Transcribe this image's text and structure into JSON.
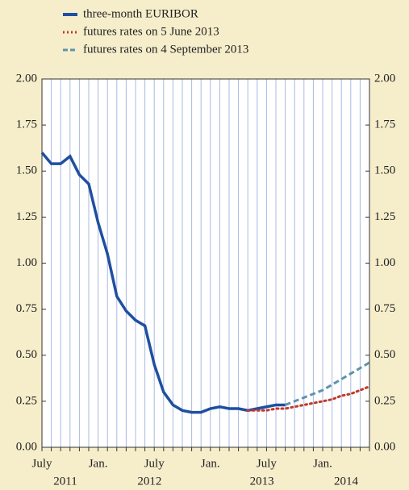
{
  "chart_data": {
    "type": "line",
    "xlim": [
      "2011-07",
      "2014-06"
    ],
    "xticks": [
      "2011-07",
      "2011-08",
      "2011-09",
      "2011-10",
      "2011-11",
      "2011-12",
      "2012-01",
      "2012-02",
      "2012-03",
      "2012-04",
      "2012-05",
      "2012-06",
      "2012-07",
      "2012-08",
      "2012-09",
      "2012-10",
      "2012-11",
      "2012-12",
      "2013-01",
      "2013-02",
      "2013-03",
      "2013-04",
      "2013-05",
      "2013-06",
      "2013-07",
      "2013-08",
      "2013-09",
      "2013-10",
      "2013-11",
      "2013-12",
      "2014-01",
      "2014-02",
      "2014-03",
      "2014-04",
      "2014-05",
      "2014-06"
    ],
    "xtick_labels": [
      {
        "value": "2011-07",
        "label": "July"
      },
      {
        "value": "2012-01",
        "label": "Jan."
      },
      {
        "value": "2012-07",
        "label": "July"
      },
      {
        "value": "2013-01",
        "label": "Jan."
      },
      {
        "value": "2013-07",
        "label": "July"
      },
      {
        "value": "2014-01",
        "label": "Jan."
      }
    ],
    "years": [
      "2011",
      "2012",
      "2013",
      "2014"
    ],
    "ylim": [
      0,
      2
    ],
    "yticks": [
      {
        "value": 0,
        "label": "0.00"
      },
      {
        "value": 0.25,
        "label": "0.25"
      },
      {
        "value": 0.5,
        "label": "0.50"
      },
      {
        "value": 0.75,
        "label": "0.75"
      },
      {
        "value": 1,
        "label": "1.00"
      },
      {
        "value": 1.25,
        "label": "1.25"
      },
      {
        "value": 1.5,
        "label": "1.50"
      },
      {
        "value": 1.75,
        "label": "1.75"
      },
      {
        "value": 2,
        "label": "2.00"
      }
    ],
    "grid": true,
    "series": [
      {
        "name": "three-month EURIBOR",
        "color": "#1f4fa0",
        "style": "solid",
        "x": [
          "2011-07",
          "2011-08",
          "2011-09",
          "2011-10",
          "2011-11",
          "2011-12",
          "2012-01",
          "2012-02",
          "2012-03",
          "2012-04",
          "2012-05",
          "2012-06",
          "2012-07",
          "2012-08",
          "2012-09",
          "2012-10",
          "2012-11",
          "2012-12",
          "2013-01",
          "2013-02",
          "2013-03",
          "2013-04",
          "2013-05",
          "2013-06",
          "2013-07",
          "2013-08",
          "2013-09"
        ],
        "values": [
          1.6,
          1.54,
          1.54,
          1.58,
          1.48,
          1.43,
          1.22,
          1.05,
          0.82,
          0.74,
          0.69,
          0.66,
          0.45,
          0.3,
          0.23,
          0.2,
          0.19,
          0.19,
          0.21,
          0.22,
          0.21,
          0.21,
          0.2,
          0.21,
          0.22,
          0.23,
          0.23
        ]
      },
      {
        "name": "futures rates on 5 June 2013",
        "color": "#c0392b",
        "style": "dotted",
        "x": [
          "2013-05",
          "2013-06",
          "2013-07",
          "2013-08",
          "2013-09",
          "2013-10",
          "2013-11",
          "2013-12",
          "2014-01",
          "2014-02",
          "2014-03",
          "2014-04",
          "2014-05",
          "2014-06"
        ],
        "values": [
          0.2,
          0.2,
          0.2,
          0.21,
          0.21,
          0.22,
          0.23,
          0.24,
          0.25,
          0.26,
          0.28,
          0.29,
          0.31,
          0.33
        ]
      },
      {
        "name": "futures rates on 4 September 2013",
        "color": "#5f93ab",
        "style": "dashed",
        "x": [
          "2013-09",
          "2013-10",
          "2013-11",
          "2013-12",
          "2014-01",
          "2014-02",
          "2014-03",
          "2014-04",
          "2014-05",
          "2014-06"
        ],
        "values": [
          0.23,
          0.25,
          0.27,
          0.29,
          0.31,
          0.34,
          0.37,
          0.4,
          0.43,
          0.46
        ]
      }
    ]
  }
}
